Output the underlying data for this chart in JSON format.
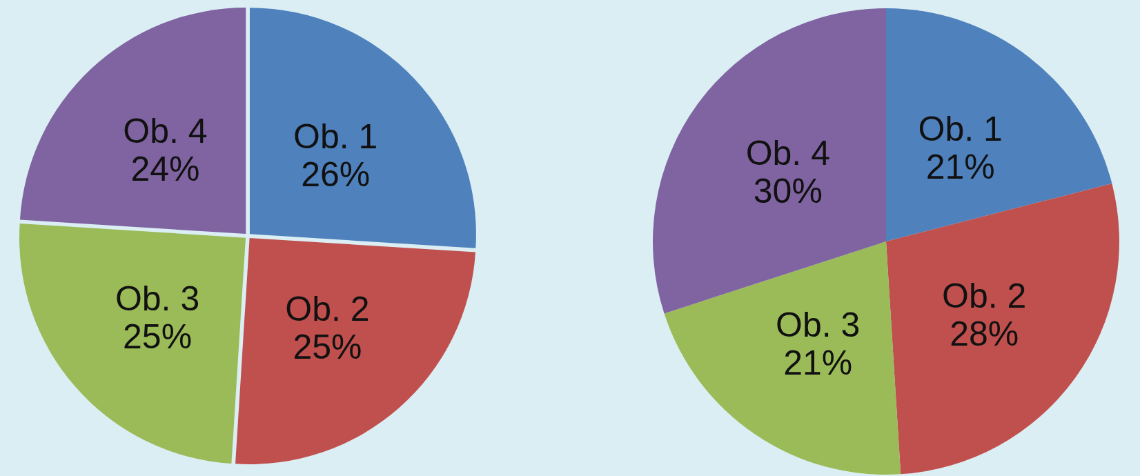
{
  "chart_data": [
    {
      "type": "pie",
      "categories": [
        "Ob. 1",
        "Ob. 2",
        "Ob. 3",
        "Ob. 4"
      ],
      "values": [
        26,
        25,
        25,
        24
      ],
      "value_labels": [
        "26%",
        "25%",
        "25%",
        "24%"
      ],
      "colors": [
        "#4f81bd",
        "#c0504d",
        "#9bbb59",
        "#8064a2"
      ]
    },
    {
      "type": "pie",
      "categories": [
        "Ob. 1",
        "Ob. 2",
        "Ob. 3",
        "Ob. 4"
      ],
      "values": [
        21,
        28,
        21,
        30
      ],
      "value_labels": [
        "21%",
        "28%",
        "21%",
        "30%"
      ],
      "colors": [
        "#4f81bd",
        "#c0504d",
        "#9bbb59",
        "#8064a2"
      ]
    }
  ]
}
